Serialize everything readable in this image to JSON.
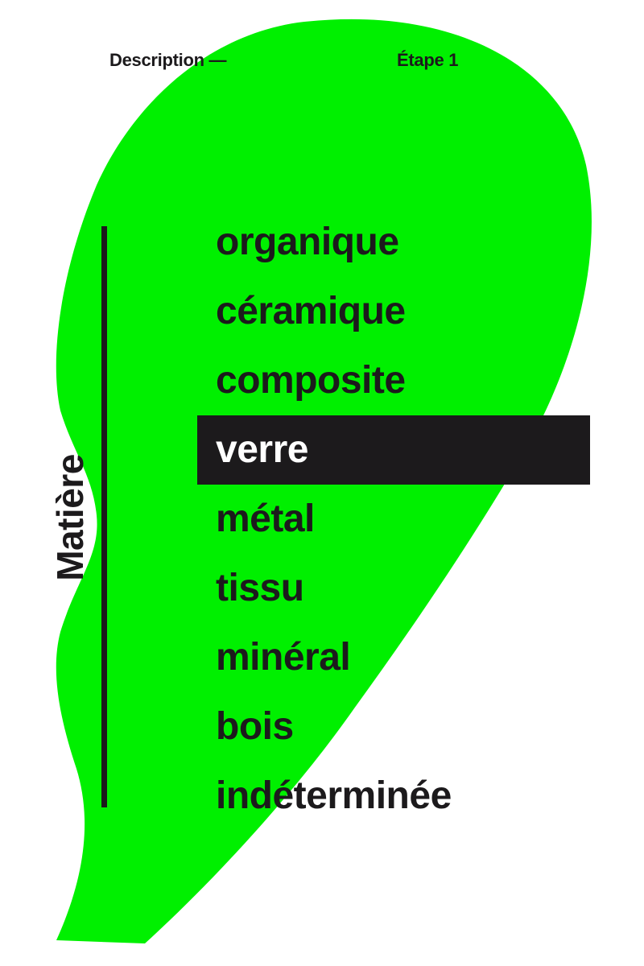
{
  "header": {
    "section": "Description —",
    "step": "Étape 1"
  },
  "category": {
    "label": "Matière"
  },
  "options": [
    {
      "label": "organique",
      "selected": false
    },
    {
      "label": "céramique",
      "selected": false
    },
    {
      "label": "composite",
      "selected": false
    },
    {
      "label": "verre",
      "selected": true
    },
    {
      "label": "métal",
      "selected": false
    },
    {
      "label": "tissu",
      "selected": false
    },
    {
      "label": "minéral",
      "selected": false
    },
    {
      "label": "bois",
      "selected": false
    },
    {
      "label": "indéterminée",
      "selected": false
    }
  ],
  "colors": {
    "accent": "#00f000",
    "ink": "#1c1a1c",
    "background": "#ffffff",
    "selected_text": "#ffffff"
  }
}
